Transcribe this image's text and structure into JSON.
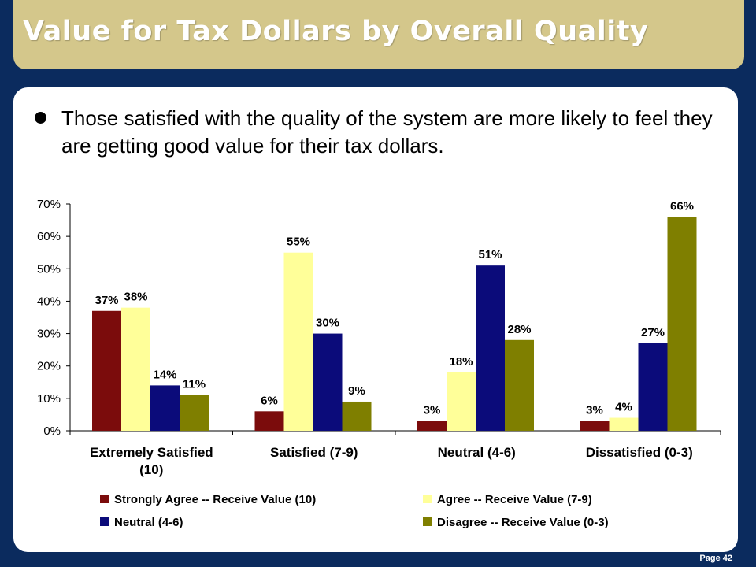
{
  "title": "Value for Tax Dollars by Overall Quality",
  "bullet": "Those satisfied with the quality of the system are more likely to feel they are getting good value for their tax dollars.",
  "page": "Page 42",
  "chart_data": {
    "type": "bar",
    "categories": [
      [
        "Extremely Satisfied",
        "(10)"
      ],
      [
        "Satisfied (7-9)"
      ],
      [
        "Neutral (4-6)"
      ],
      [
        "Dissatisfied (0-3)"
      ]
    ],
    "series": [
      {
        "name": "Strongly Agree -- Receive Value (10)",
        "color": "#7b0c0c",
        "values": [
          37,
          6,
          3,
          3
        ]
      },
      {
        "name": "Agree -- Receive Value (7-9)",
        "color": "#ffff99",
        "values": [
          38,
          55,
          18,
          4
        ]
      },
      {
        "name": "Neutral (4-6)",
        "color": "#0b0b7a",
        "values": [
          14,
          30,
          51,
          27
        ]
      },
      {
        "name": "Disagree -- Receive Value (0-3)",
        "color": "#7f7f00",
        "values": [
          11,
          9,
          28,
          66
        ]
      }
    ],
    "ylim": [
      0,
      70
    ],
    "yticks": [
      0,
      10,
      20,
      30,
      40,
      50,
      60,
      70
    ],
    "value_suffix": "%",
    "legend_position": "bottom",
    "grid": false
  }
}
